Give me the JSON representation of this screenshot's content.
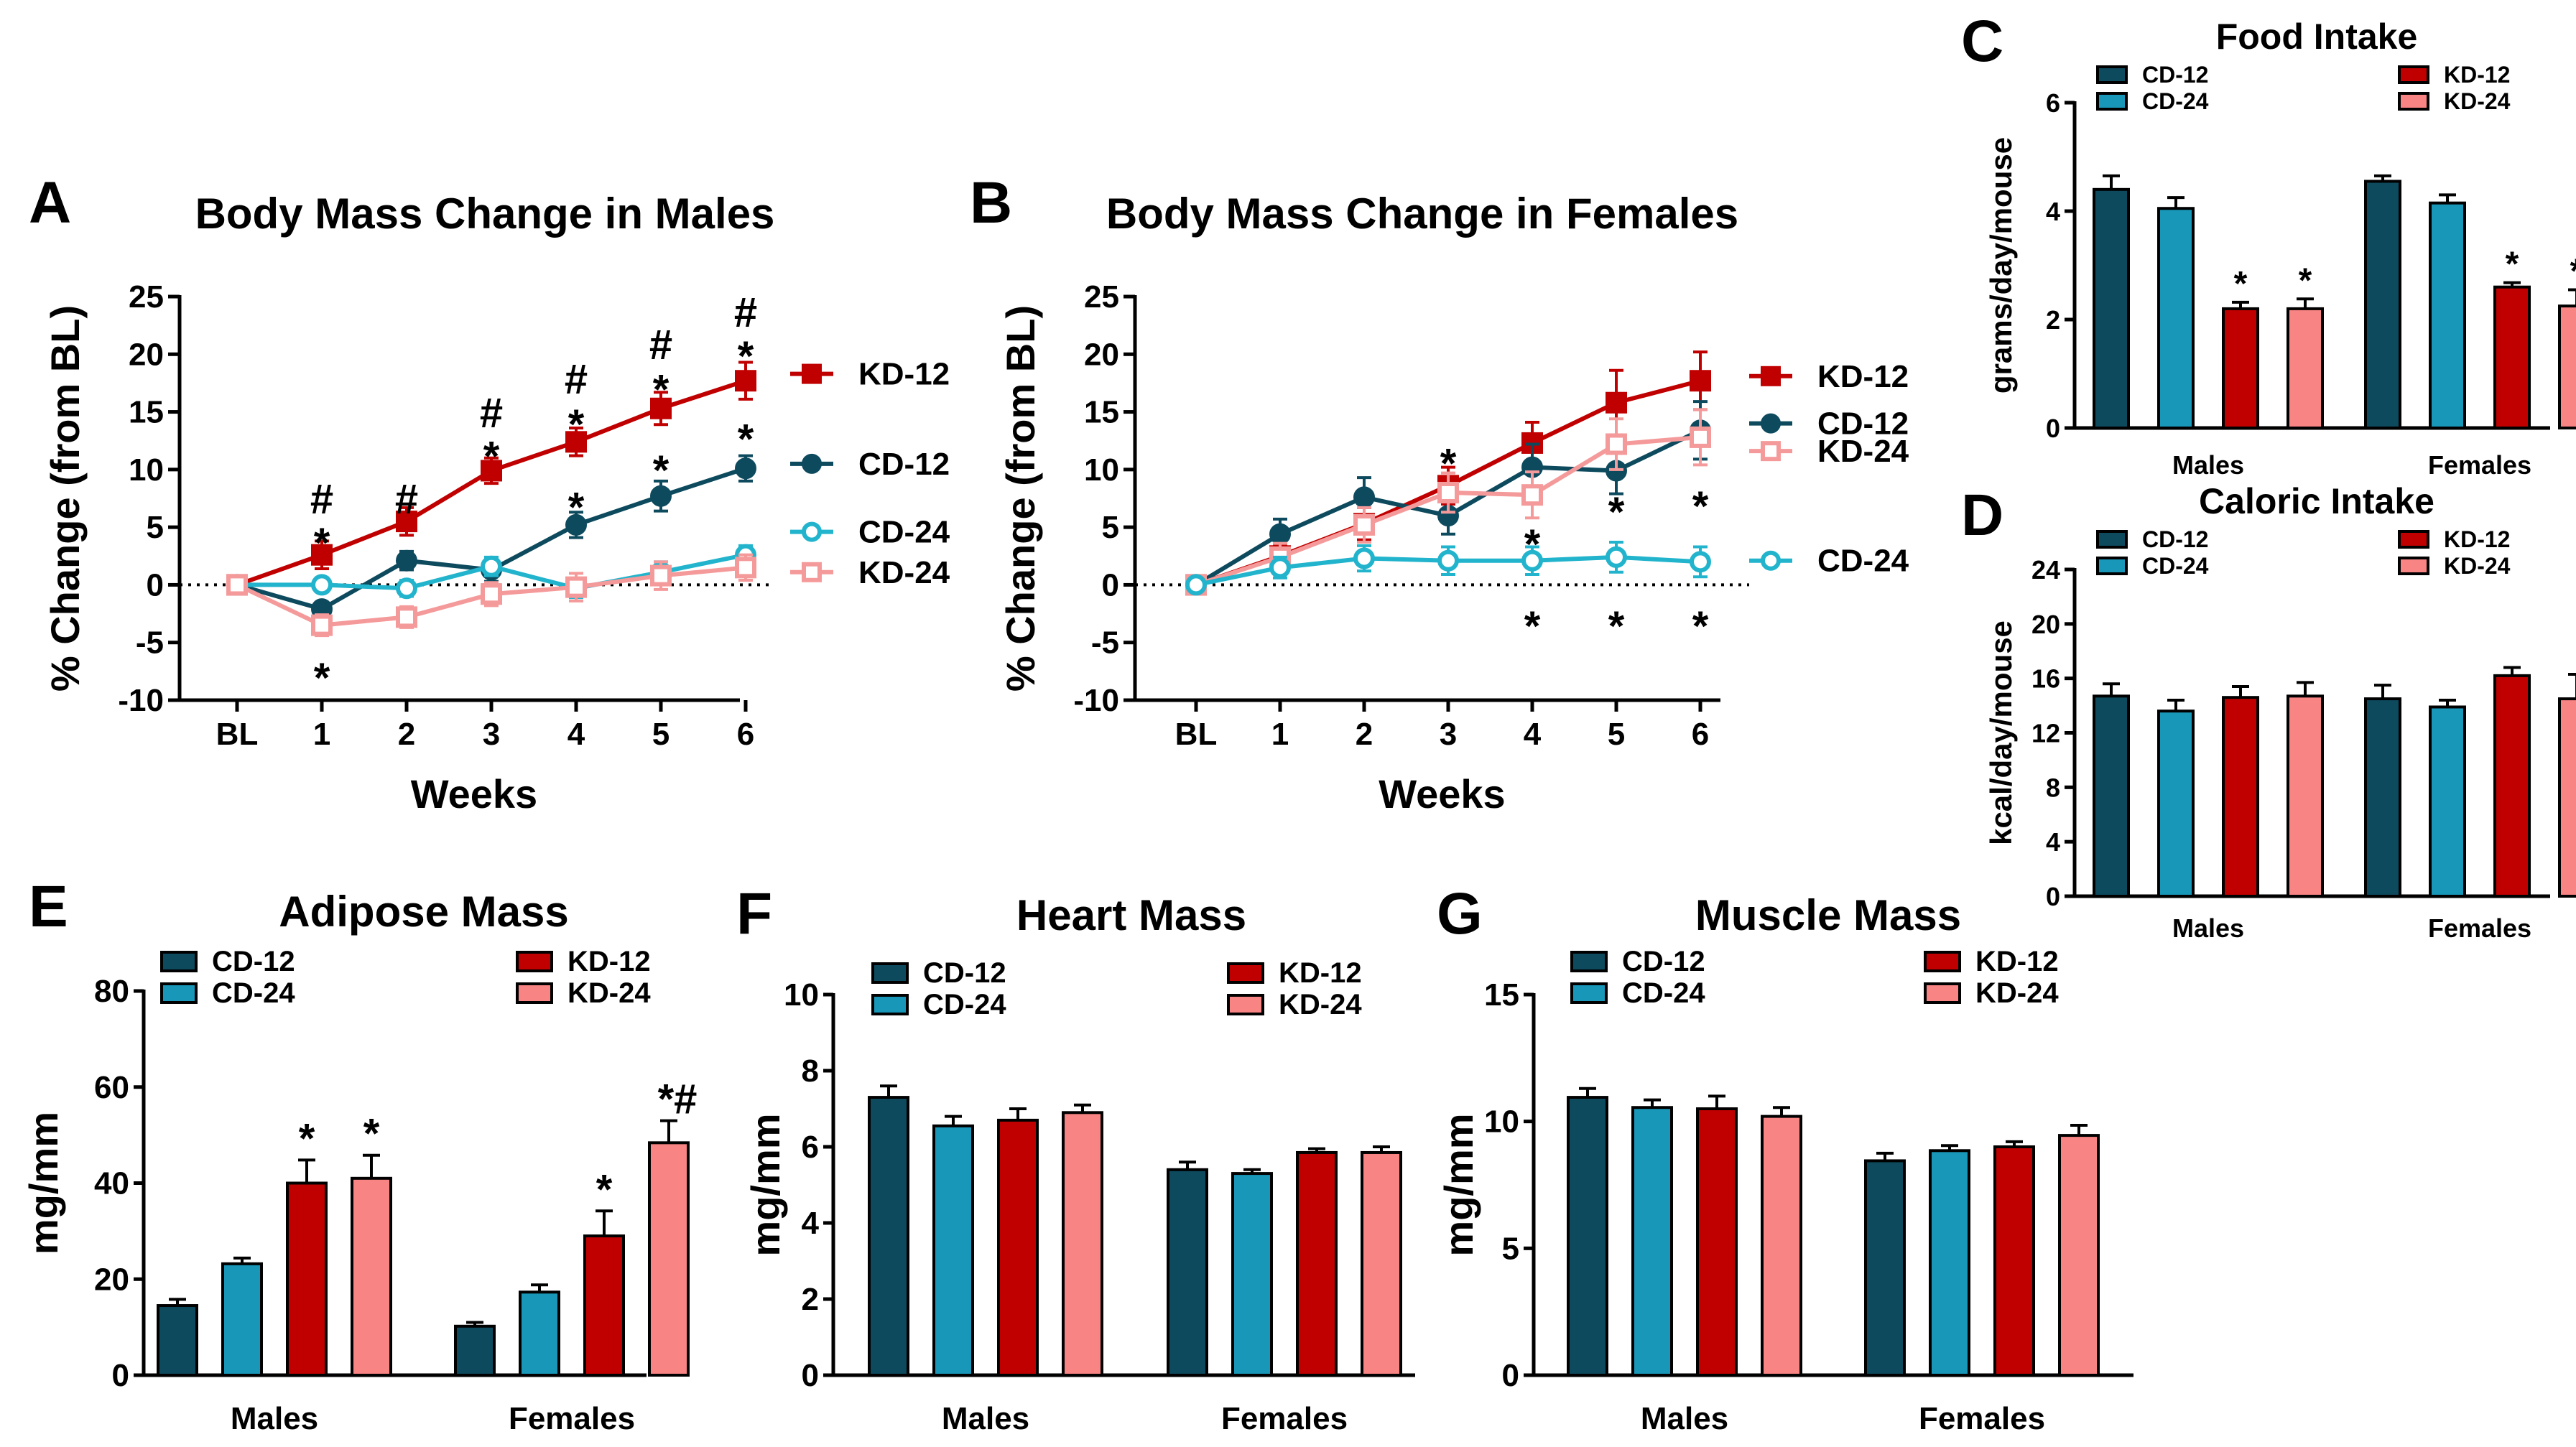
{
  "colors": {
    "CD-12": "#0d4a5e",
    "CD-24": "#1997b8",
    "KD-12": "#c00000",
    "KD-24": "#f98484",
    "CD-24-line": "#22b4cc",
    "KD-24-line": "#f59a9a",
    "axis": "#000000"
  },
  "chart_data": [
    {
      "id": "A",
      "letter": "A",
      "type": "line",
      "title": "Body Mass Change in Males",
      "xlabel": "Weeks",
      "ylabel": "% Change (from BL)",
      "categories": [
        "BL",
        "1",
        "2",
        "3",
        "4",
        "5",
        "6"
      ],
      "ylim": [
        -10,
        25
      ],
      "yticks": [
        "25",
        "20",
        "15",
        "10",
        "5",
        "0",
        "-5",
        "-10"
      ],
      "series": [
        {
          "name": "KD-12",
          "values": [
            0,
            2.6,
            5.5,
            9.9,
            12.4,
            15.3,
            17.7
          ],
          "err": [
            0.4,
            1.2,
            1.2,
            1.1,
            1.2,
            1.4,
            1.6
          ]
        },
        {
          "name": "CD-12",
          "values": [
            0,
            -2.1,
            2.1,
            1.3,
            5.2,
            7.7,
            10.1
          ],
          "err": [
            0.4,
            0.6,
            0.8,
            1.0,
            1.1,
            1.3,
            1.1
          ]
        },
        {
          "name": "CD-24",
          "values": [
            0,
            0,
            -0.3,
            1.6,
            -0.3,
            1.1,
            2.6
          ],
          "err": [
            0.3,
            0.6,
            0.7,
            0.8,
            0.8,
            0.9,
            0.8
          ]
        },
        {
          "name": "KD-24",
          "values": [
            0,
            -3.5,
            -2.8,
            -0.8,
            -0.2,
            0.8,
            1.5
          ],
          "err": [
            0.3,
            0.9,
            0.9,
            1.0,
            1.2,
            1.2,
            1.1
          ]
        }
      ],
      "annotations": [
        {
          "text": "#",
          "x": "1",
          "y": 7.3
        },
        {
          "text": "*",
          "x": "1",
          "y": 4.5
        },
        {
          "text": "*",
          "x": "1",
          "y": -7.2
        },
        {
          "text": "#",
          "x": "2",
          "y": 7.3
        },
        {
          "text": "#",
          "x": "3",
          "y": 14.8
        },
        {
          "text": "*",
          "x": "3",
          "y": 12.0
        },
        {
          "text": "#",
          "x": "4",
          "y": 17.7
        },
        {
          "text": "*",
          "x": "4",
          "y": 14.8
        },
        {
          "text": "*",
          "x": "4",
          "y": 7.6
        },
        {
          "text": "#",
          "x": "5",
          "y": 20.7
        },
        {
          "text": "*",
          "x": "5",
          "y": 17.8
        },
        {
          "text": "*",
          "x": "5",
          "y": 10.8
        },
        {
          "text": "#",
          "x": "6",
          "y": 23.5
        },
        {
          "text": "*",
          "x": "6",
          "y": 20.7
        },
        {
          "text": "*",
          "x": "6",
          "y": 13.5
        }
      ],
      "legend_entries": [
        {
          "name": "KD-12",
          "y": 18.3
        },
        {
          "name": "CD-12",
          "y": 10.5
        },
        {
          "name": "CD-24",
          "y": 4.6
        },
        {
          "name": "KD-24",
          "y": 1.1
        }
      ]
    },
    {
      "id": "B",
      "letter": "B",
      "type": "line",
      "title": "Body Mass Change in Females",
      "xlabel": "Weeks",
      "ylabel": "% Change (from BL)",
      "categories": [
        "BL",
        "1",
        "2",
        "3",
        "4",
        "5",
        "6"
      ],
      "ylim": [
        -10,
        25
      ],
      "yticks": [
        "25",
        "20",
        "15",
        "10",
        "5",
        "0",
        "-5",
        "-10"
      ],
      "series": [
        {
          "name": "KD-12",
          "values": [
            0,
            2.5,
            5.3,
            8.6,
            12.3,
            15.8,
            17.7
          ],
          "err": [
            0.3,
            1.0,
            1.4,
            1.6,
            1.8,
            2.8,
            2.5
          ]
        },
        {
          "name": "CD-12",
          "values": [
            0,
            4.4,
            7.6,
            6.0,
            10.2,
            9.9,
            13.4
          ],
          "err": [
            0.3,
            1.3,
            1.7,
            1.6,
            2.0,
            2.0,
            2.5
          ]
        },
        {
          "name": "KD-24",
          "values": [
            0,
            2.4,
            5.2,
            8.0,
            7.8,
            12.2,
            12.8
          ],
          "err": [
            0.3,
            1.2,
            1.5,
            1.7,
            2.0,
            2.2,
            2.4
          ]
        },
        {
          "name": "CD-24",
          "values": [
            0,
            1.5,
            2.3,
            2.1,
            2.1,
            2.4,
            2.0
          ],
          "err": [
            0.3,
            0.9,
            1.1,
            1.2,
            1.2,
            1.3,
            1.3
          ]
        }
      ],
      "annotations": [
        {
          "text": "*",
          "x": "3",
          "y": 11.4
        },
        {
          "text": "*",
          "x": "4",
          "y": 4.4
        },
        {
          "text": "*",
          "x": "4",
          "y": -2.7
        },
        {
          "text": "*",
          "x": "5",
          "y": 7.2
        },
        {
          "text": "*",
          "x": "5",
          "y": -2.7
        },
        {
          "text": "*",
          "x": "6",
          "y": 7.7
        },
        {
          "text": "*",
          "x": "6",
          "y": -2.7
        }
      ],
      "legend_entries": [
        {
          "name": "KD-12",
          "y": 18.1
        },
        {
          "name": "CD-12",
          "y": 14.0
        },
        {
          "name": "KD-24",
          "y": 11.6
        },
        {
          "name": "CD-24",
          "y": 2.1
        }
      ]
    },
    {
      "id": "C",
      "letter": "C",
      "type": "bar",
      "size": "small",
      "title": "Food Intake",
      "ylabel": "grams/day/mouse",
      "xlabel": "",
      "categories": [
        "Males",
        "Females"
      ],
      "ylim": [
        0,
        6
      ],
      "yticks": [
        "0",
        "2",
        "4",
        "6"
      ],
      "series": [
        {
          "name": "CD-12",
          "values": [
            4.4,
            4.55
          ],
          "err": [
            0.25,
            0.1
          ]
        },
        {
          "name": "CD-24",
          "values": [
            4.05,
            4.15
          ],
          "err": [
            0.2,
            0.15
          ]
        },
        {
          "name": "KD-12",
          "values": [
            2.2,
            2.6
          ],
          "err": [
            0.12,
            0.08
          ]
        },
        {
          "name": "KD-24",
          "values": [
            2.2,
            2.25
          ],
          "err": [
            0.18,
            0.3
          ]
        }
      ],
      "annotations": [
        {
          "text": "*",
          "group": 0,
          "bar": 2
        },
        {
          "text": "*",
          "group": 0,
          "bar": 3
        },
        {
          "text": "*",
          "group": 1,
          "bar": 2
        },
        {
          "text": "*",
          "group": 1,
          "bar": 3
        }
      ],
      "legend": [
        [
          "CD-12",
          "CD-24"
        ],
        [
          "KD-12",
          "KD-24"
        ]
      ]
    },
    {
      "id": "D",
      "letter": "D",
      "type": "bar",
      "size": "small",
      "title": "Caloric Intake",
      "ylabel": "kcal/day/mouse",
      "xlabel": "",
      "categories": [
        "Males",
        "Females"
      ],
      "ylim": [
        0,
        24
      ],
      "yticks": [
        "0",
        "4",
        "8",
        "12",
        "16",
        "20",
        "24"
      ],
      "series": [
        {
          "name": "CD-12",
          "values": [
            14.7,
            14.5
          ],
          "err": [
            0.9,
            1.0
          ]
        },
        {
          "name": "CD-24",
          "values": [
            13.6,
            13.9
          ],
          "err": [
            0.8,
            0.5
          ]
        },
        {
          "name": "KD-12",
          "values": [
            14.6,
            16.2
          ],
          "err": [
            0.8,
            0.6
          ]
        },
        {
          "name": "KD-24",
          "values": [
            14.7,
            14.5
          ],
          "err": [
            1.0,
            1.8
          ]
        }
      ],
      "annotations": [],
      "legend": [
        [
          "CD-12",
          "CD-24"
        ],
        [
          "KD-12",
          "KD-24"
        ]
      ]
    },
    {
      "id": "E",
      "letter": "E",
      "type": "bar",
      "title": "Adipose Mass",
      "ylabel": "mg/mm",
      "xlabel": "",
      "categories": [
        "Males",
        "Females"
      ],
      "ylim": [
        0,
        80
      ],
      "yticks": [
        "0",
        "20",
        "40",
        "60",
        "80"
      ],
      "series": [
        {
          "name": "CD-12",
          "values": [
            14.5,
            10.2
          ],
          "err": [
            1.3,
            0.8
          ]
        },
        {
          "name": "CD-24",
          "values": [
            23.2,
            17.3
          ],
          "err": [
            1.2,
            1.5
          ]
        },
        {
          "name": "KD-12",
          "values": [
            40,
            29
          ],
          "err": [
            4.8,
            5.2
          ]
        },
        {
          "name": "KD-24",
          "values": [
            41,
            48.4
          ],
          "err": [
            4.8,
            4.6
          ]
        }
      ],
      "annotations": [
        {
          "text": "*",
          "group": 0,
          "bar": 2
        },
        {
          "text": "*",
          "group": 0,
          "bar": 3
        },
        {
          "text": "*",
          "group": 1,
          "bar": 2
        },
        {
          "text": "*#",
          "group": 1,
          "bar": 3
        }
      ],
      "legend": [
        [
          "CD-12",
          "CD-24"
        ],
        [
          "KD-12",
          "KD-24"
        ]
      ]
    },
    {
      "id": "F",
      "letter": "F",
      "type": "bar",
      "title": "Heart Mass",
      "ylabel": "mg/mm",
      "xlabel": "",
      "categories": [
        "Males",
        "Females"
      ],
      "ylim": [
        0,
        10
      ],
      "yticks": [
        "0",
        "2",
        "4",
        "6",
        "8",
        "10"
      ],
      "series": [
        {
          "name": "CD-12",
          "values": [
            7.3,
            5.4
          ],
          "err": [
            0.3,
            0.2
          ]
        },
        {
          "name": "CD-24",
          "values": [
            6.55,
            5.3
          ],
          "err": [
            0.25,
            0.1
          ]
        },
        {
          "name": "KD-12",
          "values": [
            6.7,
            5.85
          ],
          "err": [
            0.3,
            0.1
          ]
        },
        {
          "name": "KD-24",
          "values": [
            6.9,
            5.85
          ],
          "err": [
            0.2,
            0.15
          ]
        }
      ],
      "annotations": [],
      "legend": [
        [
          "CD-12",
          "CD-24"
        ],
        [
          "KD-12",
          "KD-24"
        ]
      ]
    },
    {
      "id": "G",
      "letter": "G",
      "type": "bar",
      "title": "Muscle Mass",
      "ylabel": "mg/mm",
      "xlabel": "",
      "categories": [
        "Males",
        "Females"
      ],
      "ylim": [
        0,
        15
      ],
      "yticks": [
        "0",
        "5",
        "10",
        "15"
      ],
      "series": [
        {
          "name": "CD-12",
          "values": [
            10.95,
            8.45
          ],
          "err": [
            0.35,
            0.3
          ]
        },
        {
          "name": "CD-24",
          "values": [
            10.55,
            8.85
          ],
          "err": [
            0.3,
            0.2
          ]
        },
        {
          "name": "KD-12",
          "values": [
            10.5,
            9.0
          ],
          "err": [
            0.5,
            0.2
          ]
        },
        {
          "name": "KD-24",
          "values": [
            10.2,
            9.45
          ],
          "err": [
            0.35,
            0.4
          ]
        }
      ],
      "annotations": [],
      "legend": [
        [
          "CD-12",
          "CD-24"
        ],
        [
          "KD-12",
          "KD-24"
        ]
      ]
    }
  ]
}
